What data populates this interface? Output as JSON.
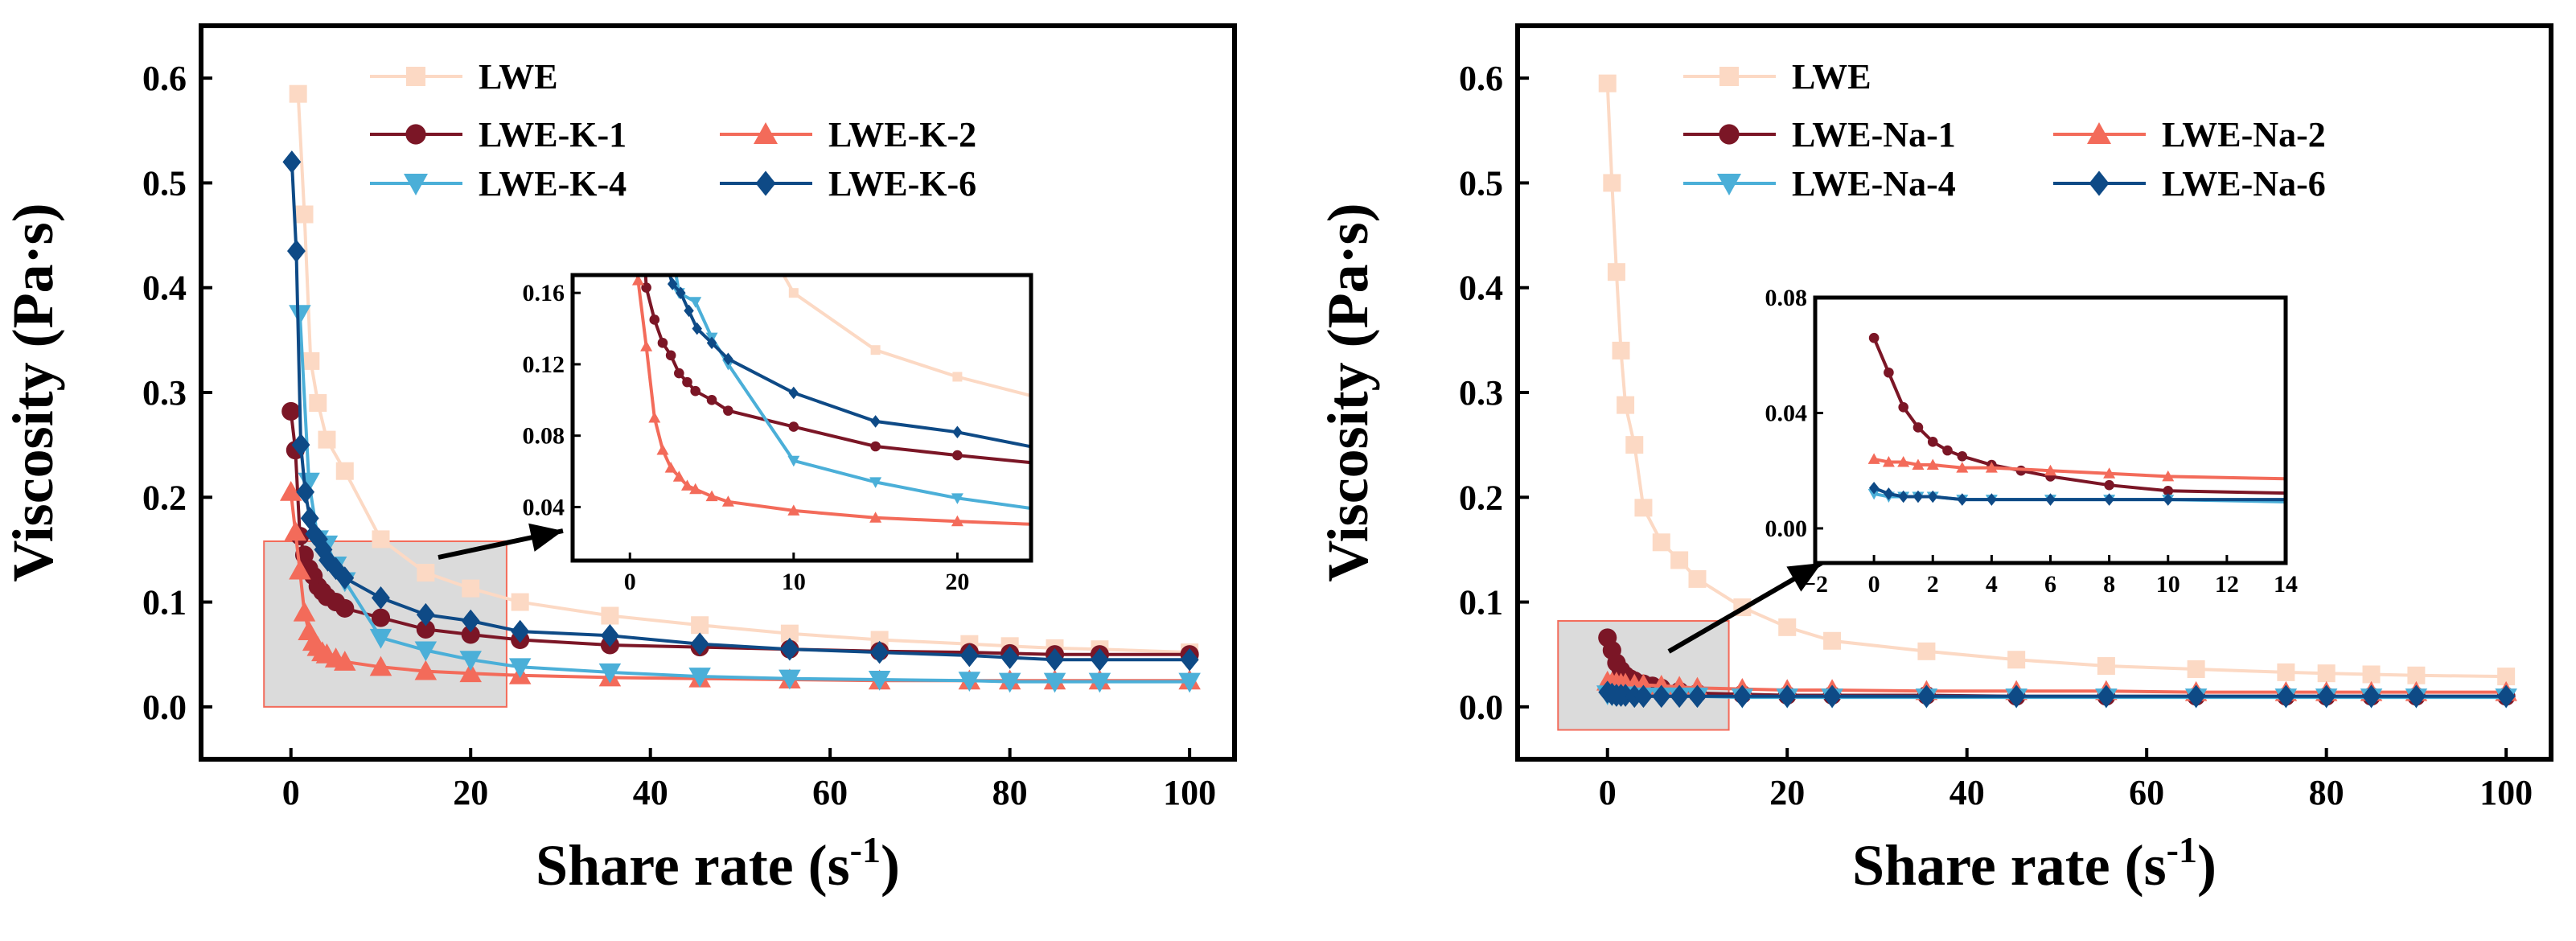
{
  "chart_data": [
    {
      "type": "line",
      "xlabel": "Share rate (s",
      "xlabel_sup": "-1",
      "xlabel_close": ")",
      "ylabel": "Viscosity (Pa·s)",
      "xlim": [
        -10,
        105
      ],
      "ylim": [
        -0.05,
        0.65
      ],
      "xticks": [
        0,
        20,
        40,
        60,
        80,
        100
      ],
      "xtick_labels": [
        "0",
        "20",
        "40",
        "60",
        "80",
        "100"
      ],
      "yticks": [
        0.0,
        0.1,
        0.2,
        0.3,
        0.4,
        0.5,
        0.6
      ],
      "ytick_labels": [
        "0.0",
        "0.1",
        "0.2",
        "0.3",
        "0.4",
        "0.5",
        "0.6"
      ],
      "legend_position": "top",
      "highlight_region": {
        "x": [
          -3,
          24
        ],
        "y": [
          0.0,
          0.158
        ]
      },
      "series": [
        {
          "name": "LWE",
          "color": "#FCD9C4",
          "marker": "square",
          "x": [
            0.8,
            1.5,
            2.2,
            3,
            4,
            6,
            10,
            15,
            20,
            25.5,
            35.5,
            45.5,
            55.5,
            65.5,
            75.5,
            80,
            85,
            90,
            100
          ],
          "y": [
            0.585,
            0.47,
            0.33,
            0.29,
            0.255,
            0.225,
            0.16,
            0.128,
            0.113,
            0.1,
            0.087,
            0.078,
            0.07,
            0.064,
            0.06,
            0.058,
            0.056,
            0.055,
            0.052
          ]
        },
        {
          "name": "LWE-K-1",
          "color": "#7B1626",
          "marker": "circle",
          "x": [
            0,
            0.5,
            1,
            1.5,
            2,
            2.5,
            3,
            3.5,
            4,
            5,
            6,
            10,
            15,
            20,
            25.5,
            35.5,
            45.5,
            55.5,
            65.5,
            75.5,
            80,
            85,
            90,
            100
          ],
          "y": [
            0.282,
            0.245,
            0.163,
            0.145,
            0.132,
            0.125,
            0.115,
            0.11,
            0.105,
            0.1,
            0.094,
            0.085,
            0.074,
            0.069,
            0.064,
            0.059,
            0.057,
            0.055,
            0.053,
            0.052,
            0.051,
            0.05,
            0.05,
            0.05
          ]
        },
        {
          "name": "LWE-K-2",
          "color": "#F36B5A",
          "marker": "triangle-up",
          "x": [
            0,
            0.5,
            1,
            1.5,
            2,
            2.5,
            3,
            3.5,
            4,
            5,
            6,
            10,
            15,
            20,
            25.5,
            35.5,
            45.5,
            55.5,
            65.5,
            75.5,
            80,
            85,
            90,
            100
          ],
          "y": [
            0.205,
            0.167,
            0.13,
            0.09,
            0.072,
            0.062,
            0.057,
            0.052,
            0.05,
            0.046,
            0.043,
            0.038,
            0.034,
            0.032,
            0.03,
            0.028,
            0.027,
            0.026,
            0.025,
            0.025,
            0.025,
            0.025,
            0.025,
            0.025
          ]
        },
        {
          "name": "LWE-K-4",
          "color": "#4BAFD8",
          "marker": "triangle-down",
          "x": [
            1,
            2,
            3,
            4,
            5,
            6,
            10,
            15,
            20,
            25.5,
            35.5,
            45.5,
            55.5,
            65.5,
            75.5,
            80,
            85,
            90,
            100
          ],
          "y": [
            0.375,
            0.215,
            0.16,
            0.155,
            0.135,
            0.12,
            0.066,
            0.054,
            0.045,
            0.038,
            0.033,
            0.029,
            0.027,
            0.026,
            0.025,
            0.024,
            0.024,
            0.024,
            0.024
          ]
        },
        {
          "name": "LWE-K-6",
          "color": "#0E4A86",
          "marker": "diamond",
          "x": [
            0.1,
            0.6,
            1.1,
            1.6,
            2.1,
            2.6,
            3.1,
            3.6,
            4.1,
            5,
            6,
            10,
            15,
            20,
            25.5,
            35.5,
            45.5,
            55.5,
            65.5,
            75.5,
            80,
            85,
            90,
            100
          ],
          "y": [
            0.52,
            0.435,
            0.25,
            0.205,
            0.18,
            0.165,
            0.16,
            0.15,
            0.14,
            0.132,
            0.123,
            0.104,
            0.088,
            0.082,
            0.072,
            0.068,
            0.06,
            0.055,
            0.052,
            0.049,
            0.047,
            0.045,
            0.045,
            0.045
          ]
        }
      ],
      "inset": {
        "xlim": [
          -3.5,
          24.5
        ],
        "ylim": [
          0.01,
          0.17
        ],
        "xticks": [
          0,
          10,
          20
        ],
        "xtick_labels": [
          "0",
          "10",
          "20"
        ],
        "yticks": [
          0.04,
          0.08,
          0.12,
          0.16
        ],
        "ytick_labels": [
          "0.04",
          "0.08",
          "0.12",
          "0.16"
        ]
      }
    },
    {
      "type": "line",
      "xlabel": "Share rate (s",
      "xlabel_sup": "-1",
      "xlabel_close": ")",
      "ylabel": "Viscosity (Pa·s)",
      "xlim": [
        -10,
        105
      ],
      "ylim": [
        -0.05,
        0.65
      ],
      "xticks": [
        0,
        20,
        40,
        60,
        80,
        100
      ],
      "xtick_labels": [
        "0",
        "20",
        "40",
        "60",
        "80",
        "100"
      ],
      "yticks": [
        0.0,
        0.1,
        0.2,
        0.3,
        0.4,
        0.5,
        0.6
      ],
      "ytick_labels": [
        "0.0",
        "0.1",
        "0.2",
        "0.3",
        "0.4",
        "0.5",
        "0.6"
      ],
      "legend_position": "top",
      "highlight_region": {
        "x": [
          -5.5,
          13.5
        ],
        "y": [
          -0.022,
          0.082
        ]
      },
      "series": [
        {
          "name": "LWE",
          "color": "#FCD9C4",
          "marker": "square",
          "x": [
            0,
            0.5,
            1,
            1.5,
            2,
            3,
            4,
            6,
            8,
            10,
            15,
            20,
            25,
            35.5,
            45.5,
            55.5,
            65.5,
            75.5,
            80,
            85,
            90,
            100
          ],
          "y": [
            0.595,
            0.5,
            0.415,
            0.34,
            0.288,
            0.25,
            0.19,
            0.157,
            0.14,
            0.122,
            0.095,
            0.076,
            0.063,
            0.053,
            0.045,
            0.039,
            0.036,
            0.033,
            0.032,
            0.031,
            0.03,
            0.029
          ]
        },
        {
          "name": "LWE-Na-1",
          "color": "#7B1626",
          "marker": "circle",
          "x": [
            0,
            0.5,
            1,
            1.5,
            2,
            2.5,
            3,
            4,
            5,
            6,
            8,
            10,
            15,
            20,
            25,
            35.5,
            45.5,
            55.5,
            65.5,
            75.5,
            80,
            85,
            90,
            100
          ],
          "y": [
            0.066,
            0.054,
            0.042,
            0.035,
            0.03,
            0.027,
            0.025,
            0.022,
            0.02,
            0.018,
            0.015,
            0.013,
            0.012,
            0.011,
            0.011,
            0.011,
            0.01,
            0.01,
            0.01,
            0.01,
            0.01,
            0.01,
            0.01,
            0.01
          ]
        },
        {
          "name": "LWE-Na-2",
          "color": "#F36B5A",
          "marker": "triangle-up",
          "x": [
            0,
            0.5,
            1,
            1.5,
            2,
            3,
            4,
            6,
            8,
            10,
            15,
            20,
            25,
            35.5,
            45.5,
            55.5,
            65.5,
            75.5,
            80,
            85,
            90,
            100
          ],
          "y": [
            0.024,
            0.023,
            0.023,
            0.022,
            0.022,
            0.021,
            0.021,
            0.02,
            0.019,
            0.018,
            0.017,
            0.016,
            0.016,
            0.015,
            0.015,
            0.015,
            0.014,
            0.014,
            0.014,
            0.014,
            0.014,
            0.014
          ]
        },
        {
          "name": "LWE-Na-4",
          "color": "#4BAFD8",
          "marker": "triangle-down",
          "x": [
            0,
            0.5,
            1,
            1.5,
            2,
            3,
            4,
            6,
            8,
            10,
            15,
            20,
            25,
            35.5,
            45.5,
            55.5,
            65.5,
            75.5,
            80,
            85,
            90,
            100
          ],
          "y": [
            0.012,
            0.011,
            0.011,
            0.011,
            0.011,
            0.01,
            0.01,
            0.01,
            0.01,
            0.01,
            0.009,
            0.009,
            0.009,
            0.009,
            0.009,
            0.009,
            0.009,
            0.009,
            0.009,
            0.009,
            0.009,
            0.009
          ]
        },
        {
          "name": "LWE-Na-6",
          "color": "#0E4A86",
          "marker": "diamond",
          "x": [
            0,
            0.5,
            1,
            1.5,
            2,
            3,
            4,
            6,
            8,
            10,
            15,
            20,
            25,
            35.5,
            45.5,
            55.5,
            65.5,
            75.5,
            80,
            85,
            90,
            100
          ],
          "y": [
            0.014,
            0.012,
            0.011,
            0.011,
            0.011,
            0.01,
            0.01,
            0.01,
            0.01,
            0.01,
            0.01,
            0.01,
            0.01,
            0.01,
            0.01,
            0.01,
            0.01,
            0.01,
            0.01,
            0.01,
            0.01,
            0.01
          ]
        }
      ],
      "inset": {
        "xlim": [
          -2,
          14
        ],
        "ylim": [
          -0.012,
          0.08
        ],
        "xticks": [
          -2,
          0,
          2,
          4,
          6,
          8,
          10,
          12,
          14
        ],
        "xtick_labels": [
          "−2",
          "0",
          "2",
          "4",
          "6",
          "8",
          "10",
          "12",
          "14"
        ],
        "yticks": [
          0.0,
          0.04,
          0.08
        ],
        "ytick_labels": [
          "0.00",
          "0.04",
          "0.08"
        ]
      }
    }
  ]
}
